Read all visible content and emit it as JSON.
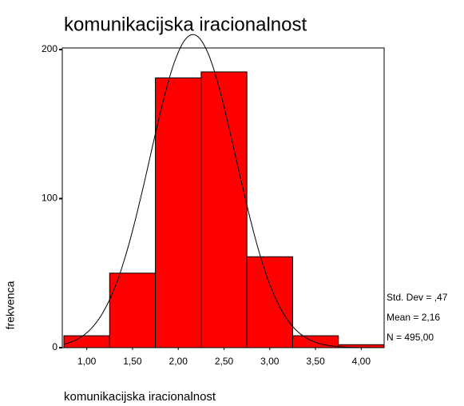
{
  "chart_data": {
    "type": "histogram",
    "title": "komunikacijska iracionalnost",
    "x_label": "komunikacijska iracionalnost",
    "y_label": "frekvenca",
    "bins": [
      0.75,
      1.25,
      1.75,
      2.25,
      2.75,
      3.25,
      3.75,
      4.25
    ],
    "values": [
      8,
      50,
      181,
      185,
      61,
      8,
      2
    ],
    "color": "#ff0000",
    "xlim": [
      0.75,
      4.25
    ],
    "ylim": [
      0,
      200
    ],
    "xticks": [
      {
        "value": 1,
        "label": "1,00"
      },
      {
        "value": 1.5,
        "label": "1,50"
      },
      {
        "value": 2,
        "label": "2,00"
      },
      {
        "value": 2.5,
        "label": "2,50"
      },
      {
        "value": 3,
        "label": "3,00"
      },
      {
        "value": 3.5,
        "label": "3,50"
      },
      {
        "value": 4,
        "label": "4,00"
      }
    ],
    "yticks": [
      0,
      100,
      200
    ],
    "stats": {
      "std_dev": {
        "value": 0.47,
        "label": "Std. Dev = ,47"
      },
      "mean": {
        "value": 2.16,
        "label": "Mean = 2,16"
      },
      "n": {
        "value": 495,
        "label": "N = 495,00"
      }
    }
  }
}
